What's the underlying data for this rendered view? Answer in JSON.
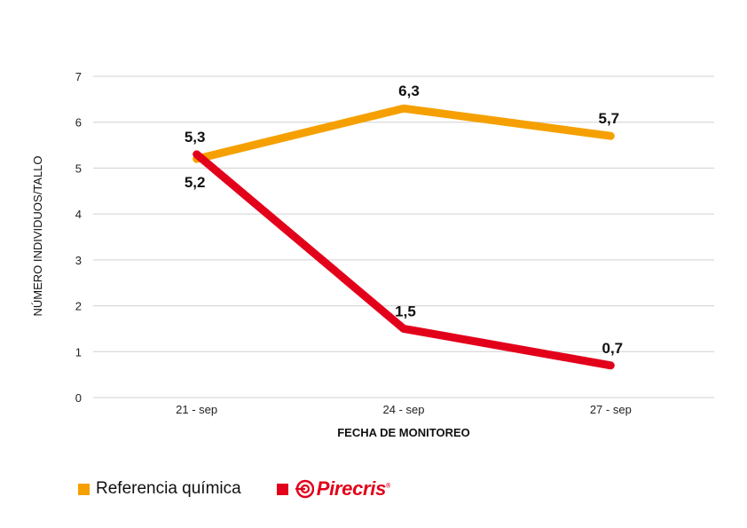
{
  "chart_data": {
    "type": "line",
    "categories": [
      "21 - sep",
      "24 - sep",
      "27 - sep"
    ],
    "series": [
      {
        "name": "Referencia química",
        "color": "#F5A000",
        "values": [
          5.2,
          6.3,
          5.7
        ],
        "labels": [
          "5,2",
          "6,3",
          "5,7"
        ]
      },
      {
        "name": "Pirecris",
        "color": "#E2001A",
        "values": [
          5.3,
          1.5,
          0.7
        ],
        "labels": [
          "5,3",
          "1,5",
          "0,7"
        ]
      }
    ],
    "xlabel": "FECHA DE MONITOREO",
    "ylabel": "NÚMERO INDIVIDUOS/TALLO",
    "ylim": [
      0,
      7
    ],
    "yticks": [
      "0",
      "1",
      "2",
      "3",
      "4",
      "5",
      "6",
      "7"
    ],
    "grid": true,
    "legend_position": "bottom-left"
  },
  "legend": {
    "chemical_label": "Referencia química",
    "brand_label": "Pirecris",
    "brand_mark": "®"
  },
  "colors": {
    "chemical": "#F5A000",
    "brand": "#E2001A",
    "grid": "#D0D0D0"
  },
  "icons": {
    "brand_logo": "pirecris-logo-icon"
  }
}
